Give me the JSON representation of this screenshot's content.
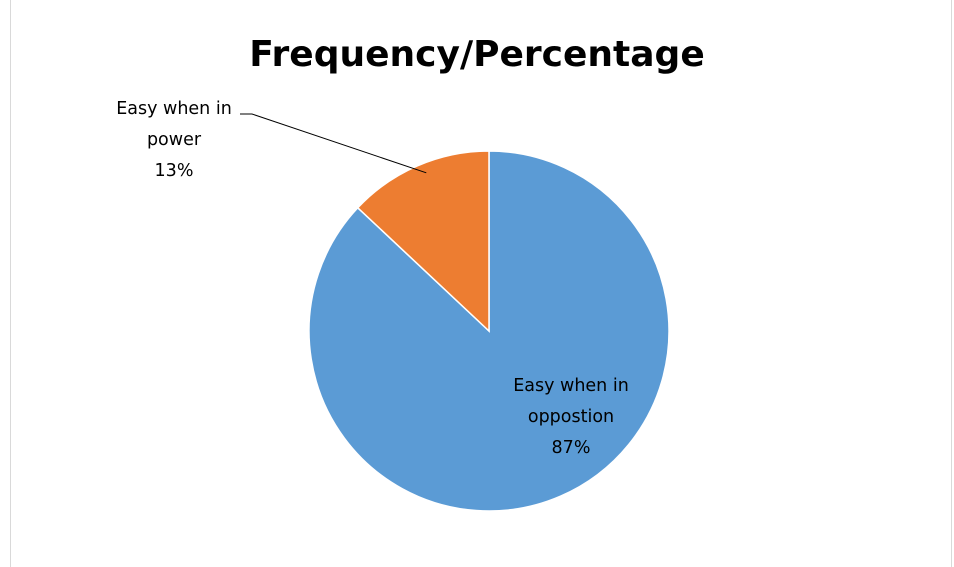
{
  "chart_data": {
    "type": "pie",
    "title": "Frequency/Percentage",
    "slices": [
      {
        "label_lines": [
          "Easy when in",
          "oppostion"
        ],
        "percent_label": "87%",
        "value": 87,
        "color": "#5b9bd5"
      },
      {
        "label_lines": [
          "Easy when in",
          "power"
        ],
        "percent_label": "13%",
        "value": 13,
        "color": "#ed7d31"
      }
    ],
    "legend": "none"
  }
}
